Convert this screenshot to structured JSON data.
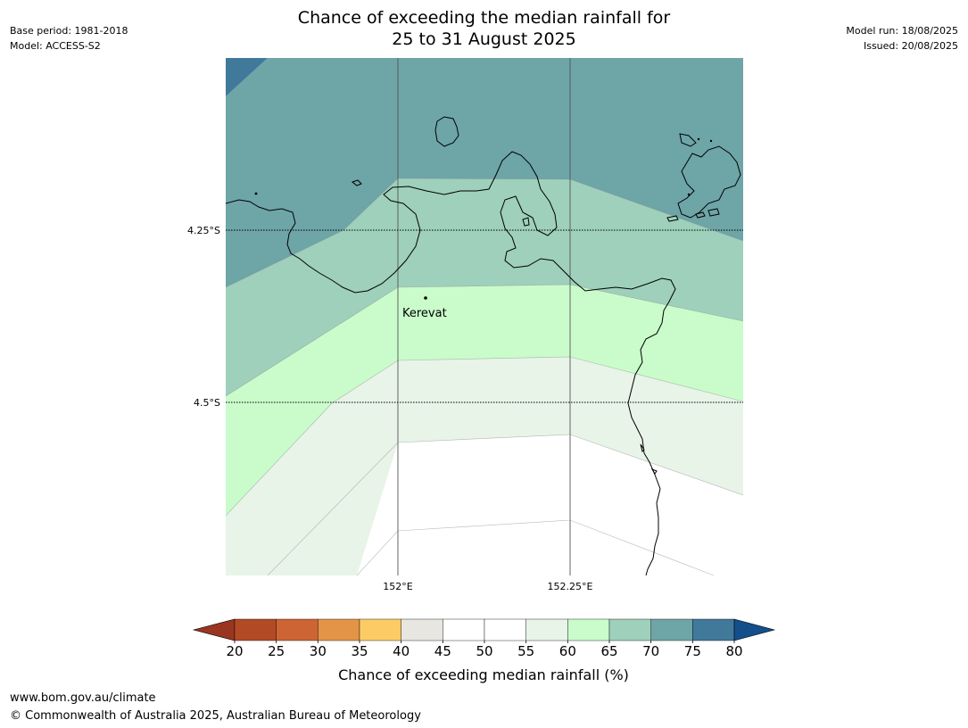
{
  "title": {
    "line1": "Chance of exceeding the median rainfall for",
    "line2": "25 to 31 August 2025"
  },
  "meta_left": {
    "base_period": "Base period: 1981-2018",
    "model": "Model: ACCESS-S2"
  },
  "meta_right": {
    "model_run": "Model run: 18/08/2025",
    "issued": "Issued: 20/08/2025"
  },
  "map": {
    "lat_labels": [
      "4.25°S",
      "4.5°S"
    ],
    "lon_labels": [
      "152°E",
      "152.25°E"
    ],
    "place_label": "Kerevat",
    "band_values_percent": [
      80,
      70,
      65,
      60,
      55,
      50
    ]
  },
  "colorbar": {
    "title": "Chance of exceeding median rainfall (%)",
    "ticks": [
      "20",
      "25",
      "30",
      "35",
      "40",
      "45",
      "50",
      "55",
      "60",
      "65",
      "70",
      "75",
      "80"
    ],
    "colors": [
      "#9a3522",
      "#b34a26",
      "#cc6533",
      "#e39446",
      "#fdcb66",
      "#e8e6e1",
      "#ffffff",
      "#ffffff",
      "#e8f4e8",
      "#c9fcca",
      "#9ed0bb",
      "#6ea5a7",
      "#41799b",
      "#144f8c"
    ]
  },
  "footer": {
    "url": "www.bom.gov.au/climate",
    "copyright": "© Commonwealth of Australia 2025, Australian Bureau of Meteorology"
  }
}
